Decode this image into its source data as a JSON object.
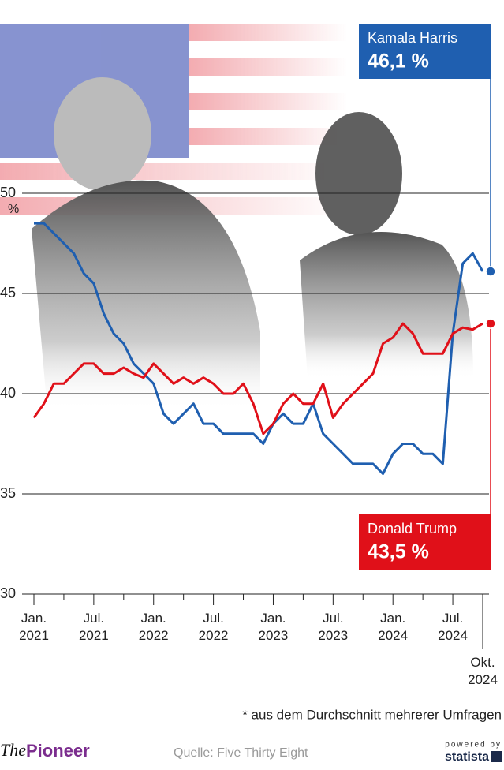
{
  "chart_data": {
    "type": "line",
    "y_unit": "%",
    "x": [
      "2021-01",
      "2021-02",
      "2021-03",
      "2021-04",
      "2021-05",
      "2021-06",
      "2021-07",
      "2021-08",
      "2021-09",
      "2021-10",
      "2021-11",
      "2021-12",
      "2022-01",
      "2022-02",
      "2022-03",
      "2022-04",
      "2022-05",
      "2022-06",
      "2022-07",
      "2022-08",
      "2022-09",
      "2022-10",
      "2022-11",
      "2022-12",
      "2023-01",
      "2023-02",
      "2023-03",
      "2023-04",
      "2023-05",
      "2023-06",
      "2023-07",
      "2023-08",
      "2023-09",
      "2023-10",
      "2023-11",
      "2023-12",
      "2024-01",
      "2024-02",
      "2024-03",
      "2024-04",
      "2024-05",
      "2024-06",
      "2024-07",
      "2024-08",
      "2024-09",
      "2024-10"
    ],
    "series": [
      {
        "name": "Kamala Harris",
        "color": "#1f5fb0",
        "values": [
          48.5,
          48.5,
          48,
          47.5,
          47,
          46,
          45.5,
          44,
          43,
          42.5,
          41.5,
          41,
          40.5,
          39,
          38.5,
          39,
          39.5,
          38.5,
          38.5,
          38,
          38,
          38,
          38,
          37.5,
          38.5,
          39,
          38.5,
          38.5,
          39.5,
          38,
          37.5,
          37,
          36.5,
          36.5,
          36.5,
          36,
          37,
          37.5,
          37.5,
          37,
          37,
          36.5,
          43,
          46.5,
          47,
          46.1
        ],
        "value_labels": [
          null,
          null,
          null,
          null,
          null,
          null,
          null,
          null,
          null,
          null,
          null,
          null,
          null,
          null,
          null,
          null,
          null,
          null,
          null,
          null,
          null,
          null,
          null,
          null,
          null,
          null,
          null,
          null,
          null,
          null,
          null,
          null,
          null,
          null,
          null,
          null,
          null,
          null,
          null,
          null,
          null,
          null,
          null,
          null,
          null,
          "46,1 %"
        ]
      },
      {
        "name": "Donald Trump",
        "color": "#e01019",
        "values": [
          38.8,
          39.5,
          40.5,
          40.5,
          41,
          41.5,
          41.5,
          41,
          41,
          41.3,
          41,
          40.8,
          41.5,
          41,
          40.5,
          40.8,
          40.5,
          40.8,
          40.5,
          40,
          40,
          40.5,
          39.5,
          38,
          38.5,
          39.5,
          40,
          39.5,
          39.5,
          40.5,
          38.8,
          39.5,
          40,
          40.5,
          41,
          42.5,
          42.8,
          43.5,
          43,
          42,
          42,
          42,
          43,
          43.3,
          43.2,
          43.5
        ],
        "value_labels": [
          null,
          null,
          null,
          null,
          null,
          null,
          null,
          null,
          null,
          null,
          null,
          null,
          null,
          null,
          null,
          null,
          null,
          null,
          null,
          null,
          null,
          null,
          null,
          null,
          null,
          null,
          null,
          null,
          null,
          null,
          null,
          null,
          null,
          null,
          null,
          null,
          null,
          null,
          null,
          null,
          null,
          null,
          null,
          null,
          null,
          "43,5 %"
        ]
      }
    ],
    "xlim": [
      "2021-01",
      "2024-10"
    ],
    "xticks": [
      {
        "value": "2021-01",
        "label": "Jan.\n2021"
      },
      {
        "value": "2021-07",
        "label": "Jul.\n2021"
      },
      {
        "value": "2022-01",
        "label": "Jan.\n2022"
      },
      {
        "value": "2022-07",
        "label": "Jul.\n2022"
      },
      {
        "value": "2023-01",
        "label": "Jan.\n2023"
      },
      {
        "value": "2023-07",
        "label": "Jul.\n2023"
      },
      {
        "value": "2024-01",
        "label": "Jan.\n2024"
      },
      {
        "value": "2024-07",
        "label": "Jul.\n2024"
      },
      {
        "value": "2024-10",
        "label": "Okt.\n2024"
      }
    ],
    "xminorticks": [
      "2021-04",
      "2021-10",
      "2022-04",
      "2022-10",
      "2023-04",
      "2023-10",
      "2024-04"
    ],
    "ylim": [
      30,
      50
    ],
    "yticks": [
      30,
      35,
      40,
      45,
      50
    ],
    "grid": true,
    "note": "* aus dem Durchschnitt mehrerer Umfragen",
    "source": "Quelle: Five Thirty Eight",
    "brand": {
      "the": "The",
      "pioneer": "Pioneer"
    },
    "powered_by": "powered by",
    "statista": "statista"
  }
}
